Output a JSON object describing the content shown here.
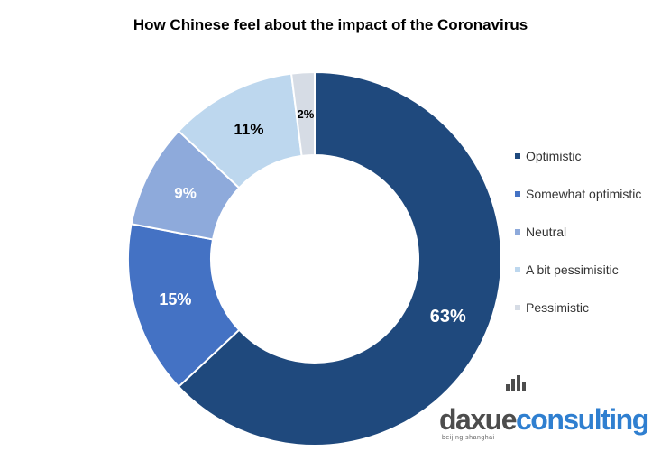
{
  "chart_data": {
    "type": "pie",
    "title": "How Chinese feel about the impact of the Coronavirus",
    "categories": [
      "Optimistic",
      "Somewhat optimistic",
      "Neutral",
      "A bit pessimisitic",
      "Pessimistic"
    ],
    "values": [
      63,
      15,
      9,
      11,
      2
    ],
    "labels": [
      "63%",
      "15%",
      "9%",
      "11%",
      "2%"
    ],
    "colors": [
      "#1f497d",
      "#4472c4",
      "#8eaadb",
      "#bdd7ee",
      "#d6dce5"
    ],
    "label_colors": [
      "#ffffff",
      "#ffffff",
      "#ffffff",
      "#000000",
      "#000000"
    ],
    "donut": true,
    "legend_position": "right"
  },
  "watermark": {
    "part1": "daxue",
    "part2": "consulting",
    "sub": "beijing shanghai",
    "colors": [
      "#4d4d4d",
      "#2f7fd0"
    ]
  }
}
